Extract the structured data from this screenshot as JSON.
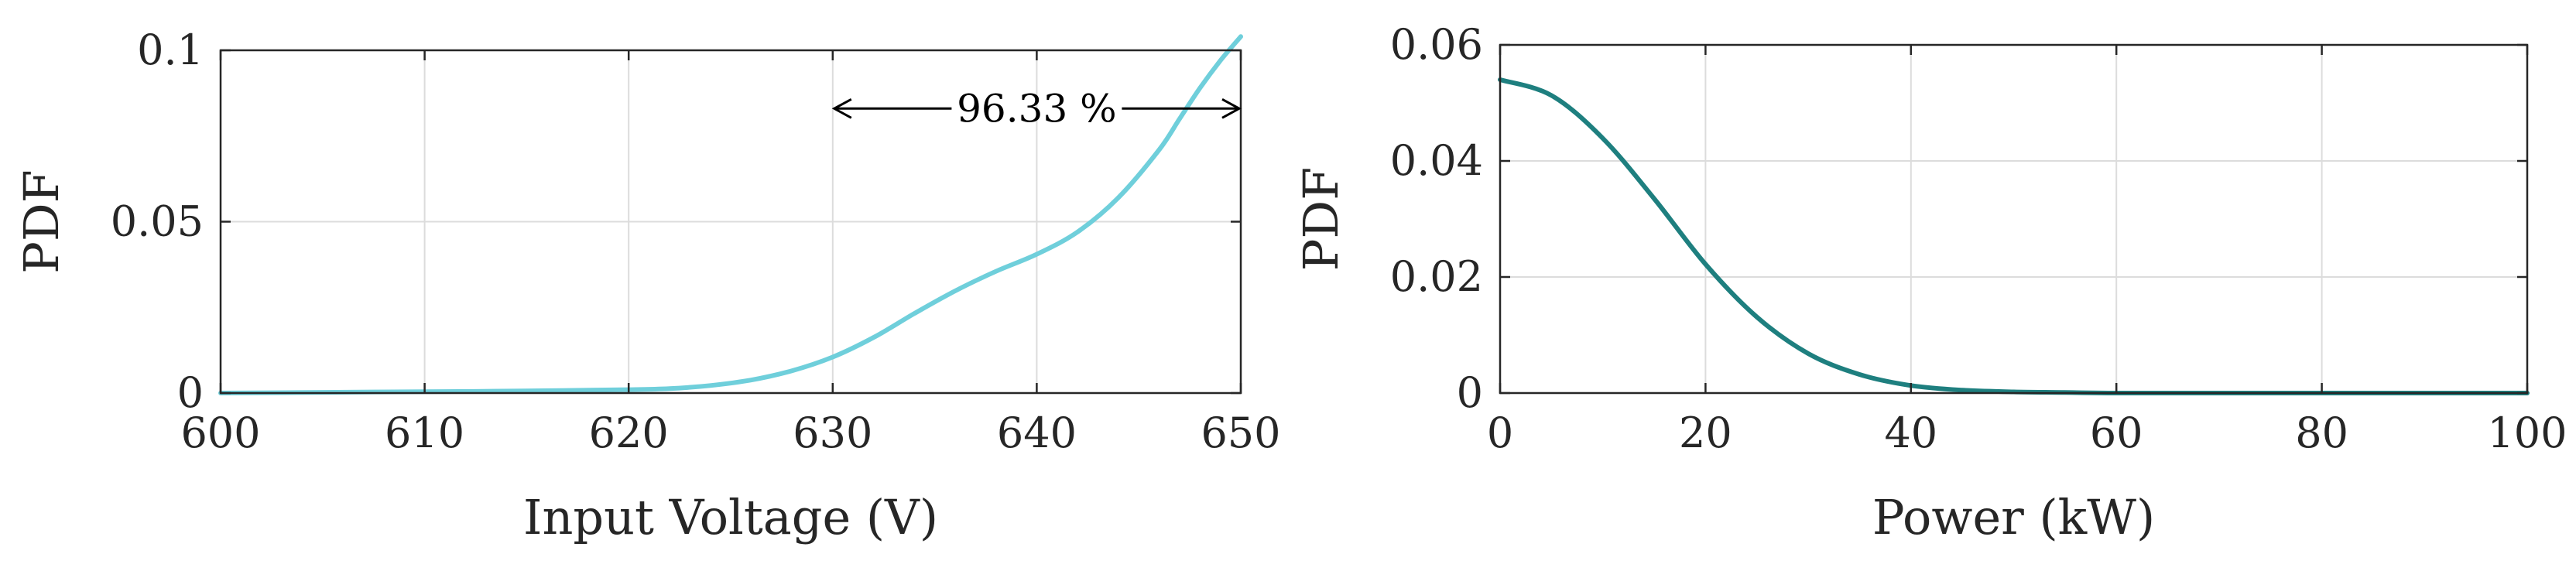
{
  "chart_data": [
    {
      "type": "line",
      "xlabel": "Input Voltage (V)",
      "ylabel": "PDF",
      "xlim": [
        600,
        650
      ],
      "ylim": [
        0,
        0.1
      ],
      "xticks": [
        "600",
        "610",
        "620",
        "630",
        "640",
        "650"
      ],
      "yticks": [
        "0",
        "0.05",
        "0.1"
      ],
      "grid": true,
      "series": [
        {
          "color": "#6fcfdb",
          "x": [
            600,
            605,
            610,
            615,
            620,
            622,
            624,
            626,
            628,
            630,
            632,
            634,
            636,
            638,
            640,
            642,
            644,
            646,
            647,
            648,
            649,
            650
          ],
          "y": [
            0,
            0.0002,
            0.0004,
            0.0006,
            0.001,
            0.0013,
            0.0022,
            0.0038,
            0.0065,
            0.0105,
            0.0162,
            0.0232,
            0.0298,
            0.0355,
            0.0405,
            0.047,
            0.057,
            0.071,
            0.08,
            0.089,
            0.097,
            0.104
          ]
        }
      ],
      "annotation": {
        "text": "96.33 %",
        "x_from": 630,
        "x_to": 650,
        "y": 0.083
      }
    },
    {
      "type": "line",
      "xlabel": "Power (kW)",
      "ylabel": "PDF",
      "xlim": [
        0,
        100
      ],
      "ylim": [
        0,
        0.06
      ],
      "xticks": [
        "0",
        "20",
        "40",
        "60",
        "80",
        "100"
      ],
      "yticks": [
        "0",
        "0.02",
        "0.04",
        "0.06"
      ],
      "grid": true,
      "series": [
        {
          "color": "#1e7f7f",
          "x": [
            0,
            5,
            10,
            15,
            20,
            25,
            30,
            35,
            40,
            45,
            50,
            55,
            60,
            70,
            80,
            90,
            100
          ],
          "y": [
            0.054,
            0.0513,
            0.0439,
            0.0335,
            0.0222,
            0.0131,
            0.0068,
            0.0032,
            0.0013,
            0.0005,
            0.0002,
            0.0001,
            0,
            0,
            0,
            0,
            0
          ]
        }
      ]
    }
  ]
}
